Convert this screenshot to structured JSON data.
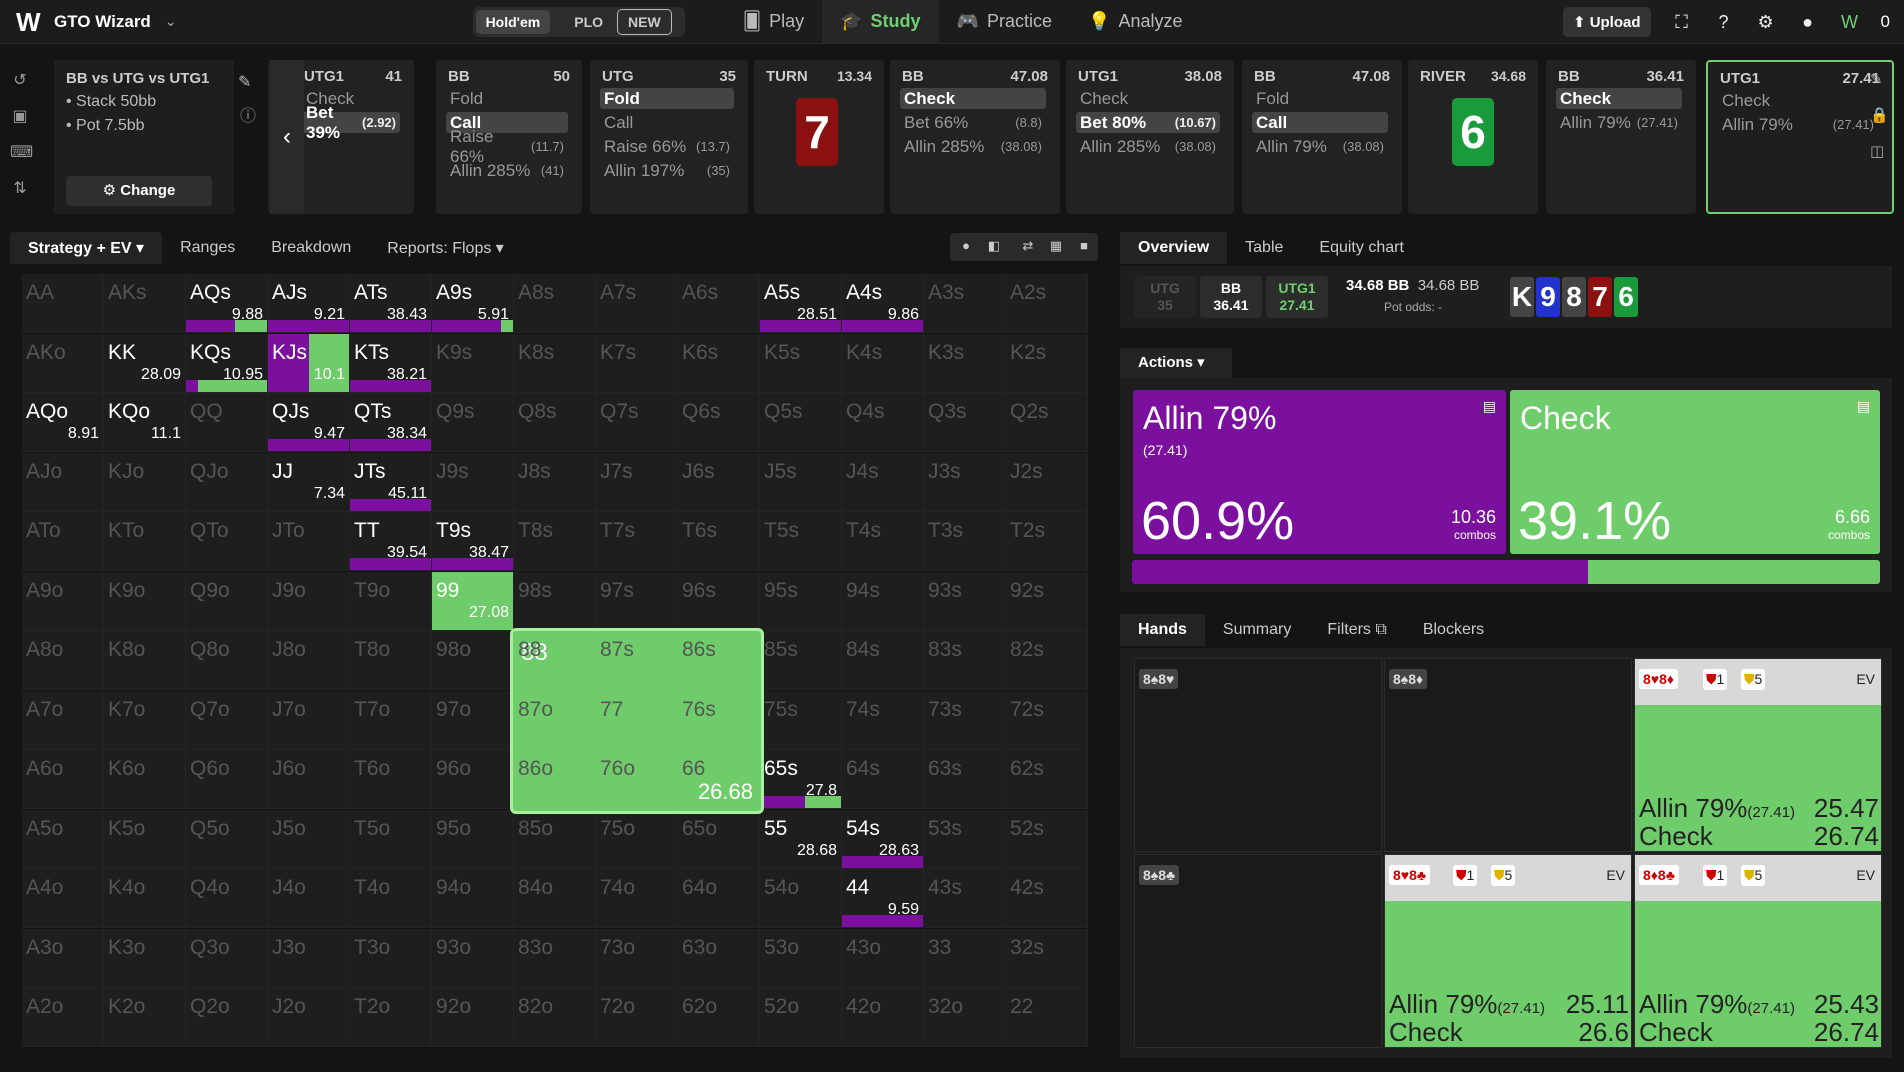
{
  "topbar": {
    "brand": "GTO Wizard",
    "game_holdem": "Hold'em",
    "game_plo": "PLO",
    "new_badge": "NEW",
    "nav": [
      "Play",
      "Study",
      "Practice",
      "Analyze"
    ],
    "upload": "Upload",
    "balance": "0"
  },
  "spot": {
    "title": "BB vs UTG vs UTG1",
    "stack": "Stack 50bb",
    "pot": "Pot 7.5bb",
    "change": "Change"
  },
  "cards": [
    {
      "player": "UTG1",
      "amount": "41",
      "actions": [
        {
          "l": "Check",
          "s": "",
          "sel": false
        },
        {
          "l": "Bet 39%",
          "s": "(2.92)",
          "sel": true
        }
      ]
    },
    {
      "player": "BB",
      "amount": "50",
      "actions": [
        {
          "l": "Fold",
          "s": "",
          "sel": false
        },
        {
          "l": "Call",
          "s": "",
          "sel": true
        },
        {
          "l": "Raise 66%",
          "s": "(11.7)",
          "sel": false
        },
        {
          "l": "Allin 285%",
          "s": "(41)",
          "sel": false
        }
      ]
    },
    {
      "player": "UTG",
      "amount": "35",
      "actions": [
        {
          "l": "Fold",
          "s": "",
          "sel": true
        },
        {
          "l": "Call",
          "s": "",
          "sel": false
        },
        {
          "l": "Raise 66%",
          "s": "(13.7)",
          "sel": false
        },
        {
          "l": "Allin 197%",
          "s": "(35)",
          "sel": false
        }
      ]
    },
    {
      "player": "BB",
      "amount": "47.08",
      "actions": [
        {
          "l": "Check",
          "s": "",
          "sel": true
        },
        {
          "l": "Bet 66%",
          "s": "(8.8)",
          "sel": false
        },
        {
          "l": "Allin 285%",
          "s": "(38.08)",
          "sel": false
        }
      ]
    },
    {
      "player": "UTG1",
      "amount": "38.08",
      "actions": [
        {
          "l": "Check",
          "s": "",
          "sel": false
        },
        {
          "l": "Bet 80%",
          "s": "(10.67)",
          "sel": true
        },
        {
          "l": "Allin 285%",
          "s": "(38.08)",
          "sel": false
        }
      ]
    },
    {
      "player": "BB",
      "amount": "47.08",
      "actions": [
        {
          "l": "Fold",
          "s": "",
          "sel": false
        },
        {
          "l": "Call",
          "s": "",
          "sel": true
        },
        {
          "l": "Allin 79%",
          "s": "(38.08)",
          "sel": false
        }
      ]
    },
    {
      "player": "BB",
      "amount": "36.41",
      "actions": [
        {
          "l": "Check",
          "s": "",
          "sel": true
        },
        {
          "l": "Allin 79%",
          "s": "(27.41)",
          "sel": false
        }
      ]
    },
    {
      "player": "UTG1",
      "amount": "27.41",
      "actions": [
        {
          "l": "Check",
          "s": "",
          "sel": false
        },
        {
          "l": "Allin 79%",
          "s": "(27.41)",
          "sel": false
        }
      ]
    }
  ],
  "turn": {
    "label": "TURN",
    "pot": "13.34",
    "card": "7"
  },
  "river": {
    "label": "RIVER",
    "pot": "34.68",
    "card": "6"
  },
  "strategy_tabs": [
    "Strategy + EV",
    "Ranges",
    "Breakdown",
    "Reports: Flops"
  ],
  "grid": {
    "rows": [
      [
        "AA",
        "AKs",
        "AQs",
        "AJs",
        "ATs",
        "A9s",
        "A8s",
        "A7s",
        "A6s",
        "A5s",
        "A4s",
        "A3s",
        "A2s"
      ],
      [
        "AKo",
        "KK",
        "KQs",
        "KJs",
        "KTs",
        "K9s",
        "K8s",
        "K7s",
        "K6s",
        "K5s",
        "K4s",
        "K3s",
        "K2s"
      ],
      [
        "AQo",
        "KQo",
        "QQ",
        "QJs",
        "QTs",
        "Q9s",
        "Q8s",
        "Q7s",
        "Q6s",
        "Q5s",
        "Q4s",
        "Q3s",
        "Q2s"
      ],
      [
        "AJo",
        "KJo",
        "QJo",
        "JJ",
        "JTs",
        "J9s",
        "J8s",
        "J7s",
        "J6s",
        "J5s",
        "J4s",
        "J3s",
        "J2s"
      ],
      [
        "ATo",
        "KTo",
        "QTo",
        "JTo",
        "TT",
        "T9s",
        "T8s",
        "T7s",
        "T6s",
        "T5s",
        "T4s",
        "T3s",
        "T2s"
      ],
      [
        "A9o",
        "K9o",
        "Q9o",
        "J9o",
        "T9o",
        "99",
        "98s",
        "97s",
        "96s",
        "95s",
        "94s",
        "93s",
        "92s"
      ],
      [
        "A8o",
        "K8o",
        "Q8o",
        "J8o",
        "T8o",
        "98o",
        "88",
        "87s",
        "86s",
        "85s",
        "84s",
        "83s",
        "82s"
      ],
      [
        "A7o",
        "K7o",
        "Q7o",
        "J7o",
        "T7o",
        "97o",
        "87o",
        "77",
        "76s",
        "75s",
        "74s",
        "73s",
        "72s"
      ],
      [
        "A6o",
        "K6o",
        "Q6o",
        "J6o",
        "T6o",
        "96o",
        "86o",
        "76o",
        "66",
        "65s",
        "64s",
        "63s",
        "62s"
      ],
      [
        "A5o",
        "K5o",
        "Q5o",
        "J5o",
        "T5o",
        "95o",
        "85o",
        "75o",
        "65o",
        "55",
        "54s",
        "53s",
        "52s"
      ],
      [
        "A4o",
        "K4o",
        "Q4o",
        "J4o",
        "T4o",
        "94o",
        "84o",
        "74o",
        "64o",
        "54o",
        "44",
        "43s",
        "42s"
      ],
      [
        "A3o",
        "K3o",
        "Q3o",
        "J3o",
        "T3o",
        "93o",
        "83o",
        "73o",
        "63o",
        "53o",
        "43o",
        "33",
        "32s"
      ],
      [
        "A2o",
        "K2o",
        "Q2o",
        "J2o",
        "T2o",
        "92o",
        "82o",
        "72o",
        "62o",
        "52o",
        "42o",
        "32o",
        "22"
      ]
    ],
    "active": {
      "0,2": {
        "ev": "9.88",
        "allin": 0.6,
        "check": 0.4
      },
      "0,3": {
        "ev": "9.21",
        "allin": 1.0,
        "check": 0
      },
      "0,4": {
        "ev": "38.43",
        "allin": 1.0,
        "check": 0
      },
      "0,5": {
        "ev": "5.91",
        "allin": 0.85,
        "check": 0.15
      },
      "0,9": {
        "ev": "28.51",
        "allin": 1.0,
        "check": 0
      },
      "0,10": {
        "ev": "9.86",
        "allin": 1.0,
        "check": 0
      },
      "1,1": {
        "ev": "28.09",
        "allin": 0,
        "check": 0
      },
      "1,2": {
        "ev": "10.95",
        "allin": 0.15,
        "check": 0.85
      },
      "1,3": {
        "ev": "10.1",
        "allin": 0.5,
        "check": 0.5,
        "full": true
      },
      "1,4": {
        "ev": "38.21",
        "allin": 1.0,
        "check": 0
      },
      "2,0": {
        "ev": "8.91",
        "allin": 0,
        "check": 0
      },
      "2,1": {
        "ev": "11.1",
        "allin": 0,
        "check": 0
      },
      "2,3": {
        "ev": "9.47",
        "allin": 1.0,
        "check": 0
      },
      "2,4": {
        "ev": "38.34",
        "allin": 1.0,
        "check": 0
      },
      "3,3": {
        "ev": "7.34",
        "allin": 0,
        "check": 0
      },
      "3,4": {
        "ev": "45.11",
        "allin": 1.0,
        "check": 0
      },
      "4,4": {
        "ev": "39.54",
        "allin": 1.0,
        "check": 0
      },
      "4,5": {
        "ev": "38.47",
        "allin": 1.0,
        "check": 0
      },
      "5,5": {
        "ev": "27.08",
        "allin": 0,
        "check": 1.0,
        "full": true
      },
      "8,9": {
        "ev": "27.8",
        "allin": 0.55,
        "check": 0.45
      },
      "9,9": {
        "ev": "28.68",
        "allin": 0,
        "check": 0
      },
      "9,10": {
        "ev": "28.63",
        "allin": 1.0,
        "check": 0
      },
      "10,10": {
        "ev": "9.59",
        "allin": 1.0,
        "check": 0
      }
    },
    "zoom": {
      "label": "88",
      "ev": "26.68"
    }
  },
  "overview": {
    "tabs": [
      "Overview",
      "Table",
      "Equity chart"
    ],
    "pills": [
      {
        "name": "UTG",
        "val": "35"
      },
      {
        "name": "BB",
        "val": "36.41"
      },
      {
        "name": "UTG1",
        "val": "27.41"
      }
    ],
    "pot_a": "34.68 BB",
    "pot_b": "34.68 BB",
    "pot_odds": "Pot odds:  -",
    "board": [
      "K",
      "9",
      "8",
      "7",
      "6"
    ],
    "board_colors": [
      "#444444",
      "#2233cc",
      "#444444",
      "#8b1010",
      "#1a9a3a"
    ]
  },
  "actions": {
    "label": "Actions",
    "allin": {
      "name": "Allin 79%",
      "size": "(27.41)",
      "pct": "60.9%",
      "combos": "10.36",
      "combos_label": "combos",
      "freq": 0.609
    },
    "check": {
      "name": "Check",
      "pct": "39.1%",
      "combos": "6.66",
      "combos_label": "combos",
      "freq": 0.391
    }
  },
  "hands": {
    "tabs": [
      "Hands",
      "Summary",
      "Filters",
      "Blockers"
    ],
    "cells": [
      {
        "combo": "8♠8♥",
        "colored": false
      },
      {
        "combo": "8♠8♦",
        "colored": false
      },
      {
        "combo": "8♥8♦",
        "colored": true,
        "b1": "1",
        "b2": "5",
        "ev": "EV",
        "allin_label": "Allin 79%",
        "allin_size": "(27.41)",
        "allin_ev": "25.47",
        "check_label": "Check",
        "check_ev": "26.74"
      },
      {
        "combo": "8♠8♣",
        "colored": false
      },
      {
        "combo": "8♥8♣",
        "colored": true,
        "b1": "1",
        "b2": "5",
        "ev": "EV",
        "allin_label": "Allin 79%",
        "allin_size": "(27.41)",
        "allin_ev": "25.11",
        "check_label": "Check",
        "check_ev": "26.6"
      },
      {
        "combo": "8♦8♣",
        "colored": true,
        "b1": "1",
        "b2": "5",
        "ev": "EV",
        "allin_label": "Allin 79%",
        "allin_size": "(27.41)",
        "allin_ev": "25.43",
        "check_label": "Check",
        "check_ev": "26.74"
      }
    ]
  },
  "colors": {
    "allin": "#7b0f9e",
    "check": "#6fcc6a",
    "accent": "#6fcf6f"
  }
}
